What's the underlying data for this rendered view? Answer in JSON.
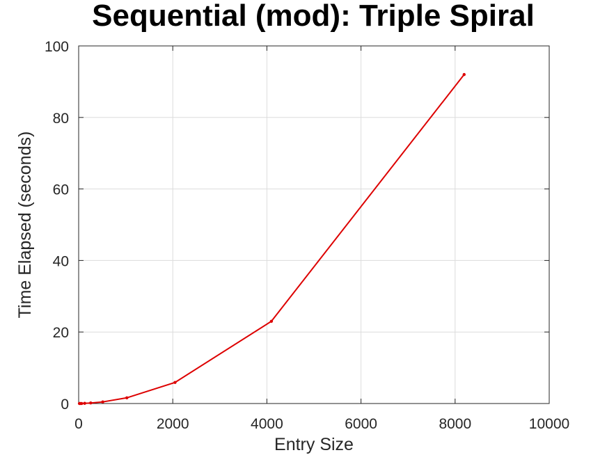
{
  "chart_data": {
    "type": "line",
    "title": "Sequential (mod): Triple Spiral",
    "xlabel": "Entry Size",
    "ylabel": "Time Elapsed (seconds)",
    "xlim": [
      0,
      10000
    ],
    "ylim": [
      0,
      100
    ],
    "x_ticks": [
      0,
      2000,
      4000,
      6000,
      8000,
      10000
    ],
    "y_ticks": [
      0,
      20,
      40,
      60,
      80,
      100
    ],
    "x_tick_labels": [
      "0",
      "2000",
      "4000",
      "6000",
      "8000",
      "10000"
    ],
    "y_tick_labels": [
      "0",
      "20",
      "40",
      "60",
      "80",
      "100"
    ],
    "grid": true,
    "series": [
      {
        "color": "#dd0000",
        "x": [
          16,
          32,
          64,
          128,
          256,
          512,
          1024,
          2048,
          4096,
          8192
        ],
        "y": [
          0.0,
          0.0,
          0.0,
          0.05,
          0.15,
          0.45,
          1.6,
          5.9,
          23.0,
          92.0
        ]
      }
    ]
  }
}
